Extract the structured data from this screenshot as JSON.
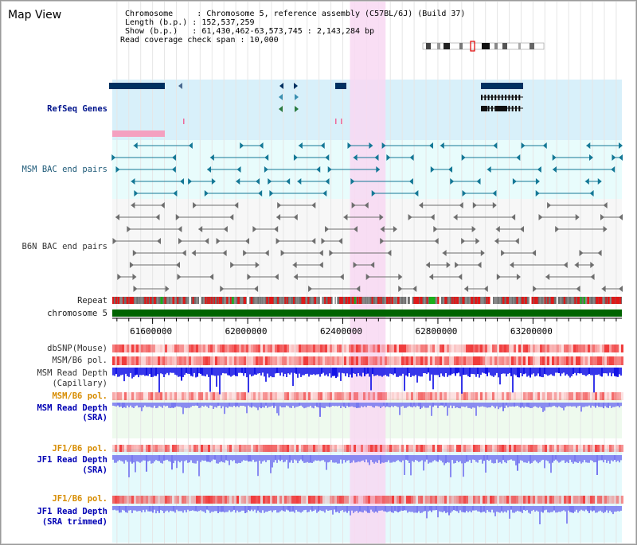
{
  "page": {
    "title": "Map View",
    "info_line1": "Chromosome     : Chromosome 5, reference assembly (C57BL/6J) (Build 37)",
    "info_line2": "Length (b.p.) : 152,537,259",
    "info_line3": "Show (b.p.)   : 61,430,462-63,573,745 : 2,143,284 bp",
    "info_line4": "Read coverage check span : 10,000"
  },
  "tracks": {
    "refseq": "RefSeq Genes",
    "msm_bac": "MSM BAC end pairs",
    "b6n_bac": "B6N BAC end pairs",
    "repeat": "Repeat",
    "chromosome": "chromosome 5",
    "dbsnp": "dbSNP(Mouse)",
    "msm_b6_pol_1": "MSM/B6 pol.",
    "msm_depth_cap_1": "MSM Read Depth",
    "msm_depth_cap_2": "(Capillary)",
    "msm_b6_pol_2": "MSM/B6 pol.",
    "msm_depth_sra_1": "MSM Read Depth",
    "msm_depth_sra_2": "(SRA)",
    "jf1_b6_pol_1": "JF1/B6 pol.",
    "jf1_depth_sra_1": "JF1 Read Depth",
    "jf1_depth_sra_2": "(SRA)",
    "jf1_b6_pol_2": "JF1/B6 pol.",
    "jf1_depth_trim_1": "JF1 Read Depth",
    "jf1_depth_trim_2": "(SRA trimmed)"
  },
  "axis": {
    "range_bp": [
      61430462,
      63573745
    ],
    "ticks": [
      "61600000",
      "62000000",
      "62400000",
      "62800000",
      "63200000"
    ]
  },
  "highlight": {
    "start_bp": 62430000,
    "end_bp": 62580000
  },
  "colors": {
    "refseq_bg": "#d8f0fa",
    "msm_bac_bg": "#e8fcfc",
    "b6n_bac_bg": "#f7f7f7",
    "highlight": "#f8d8f2",
    "chromosome": "#006400",
    "gene_navy": "#003060",
    "msm_feature": "#147896",
    "b6n_feature": "#6e6e6e",
    "depth_blue": "#1414e6",
    "depth_lavender": "#7878f0",
    "polymorphism_red": "#f03c3c"
  }
}
